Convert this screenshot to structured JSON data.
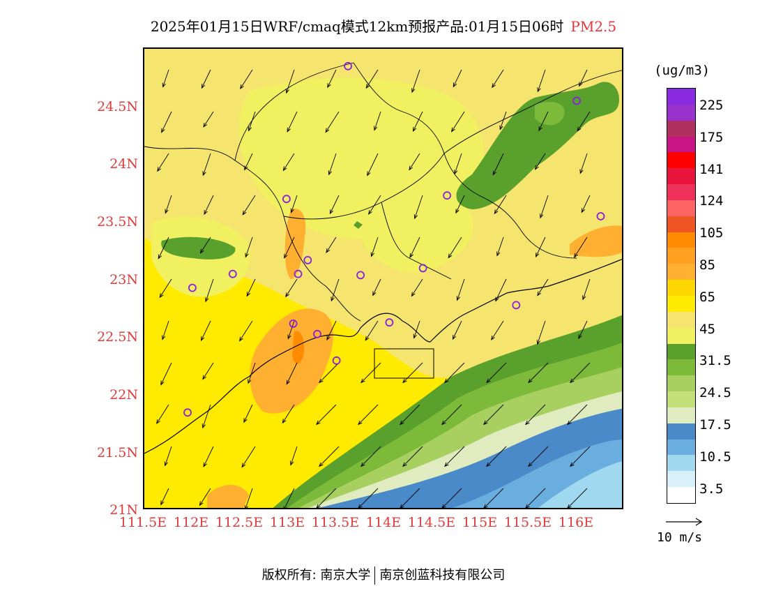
{
  "title": {
    "main": "2025年01月15日WRF/cmaq模式12km预报产品:01月15日06时",
    "pollutant": "PM2.5"
  },
  "axes": {
    "lat_labels": [
      "24.5N",
      "24N",
      "23.5N",
      "23N",
      "22.5N",
      "22N",
      "21.5N",
      "21N"
    ],
    "lon_labels": [
      "111.5E",
      "112E",
      "112.5E",
      "113E",
      "113.5E",
      "114E",
      "114.5E",
      "115E",
      "115.5E",
      "116E"
    ]
  },
  "legend": {
    "unit": "(ug/m3)",
    "labels": [
      "225",
      "175",
      "141",
      "124",
      "105",
      "85",
      "65",
      "45",
      "31.5",
      "24.5",
      "17.5",
      "10.5",
      "3.5"
    ],
    "colors": [
      "#8a2be2",
      "#9932cc",
      "#b03060",
      "#c71585",
      "#ff0000",
      "#e8143c",
      "#f0305a",
      "#ff6464",
      "#ee5522",
      "#ff8c00",
      "#ffa020",
      "#ffb030",
      "#ffd700",
      "#ffea00",
      "#f5e46e",
      "#f0f060",
      "#5aa02c",
      "#7dba3a",
      "#a8d060",
      "#c3e078",
      "#e0ecc0",
      "#4a8ac8",
      "#6aaee0",
      "#a0d8f0",
      "#d8f0fa",
      "#ffffff"
    ]
  },
  "wind_reference": {
    "label": "10 m/s"
  },
  "footer": {
    "left": "版权所有: 南京大学",
    "right": "南京创蓝科技有限公司"
  },
  "map": {
    "extent": {
      "lon_min": 111.5,
      "lon_max": 116.5,
      "lat_min": 21.0,
      "lat_max": 25.0
    },
    "monitoring_sites": [
      [
        113.62,
        24.85
      ],
      [
        116.0,
        24.55
      ],
      [
        112.98,
        23.7
      ],
      [
        114.65,
        23.73
      ],
      [
        116.25,
        23.55
      ],
      [
        113.2,
        23.17
      ],
      [
        113.1,
        23.05
      ],
      [
        112.42,
        23.05
      ],
      [
        113.75,
        23.04
      ],
      [
        114.4,
        23.1
      ],
      [
        112.0,
        22.93
      ],
      [
        113.05,
        22.62
      ],
      [
        113.3,
        22.53
      ],
      [
        114.05,
        22.63
      ],
      [
        115.37,
        22.78
      ],
      [
        113.5,
        22.3
      ],
      [
        111.95,
        21.85
      ]
    ]
  }
}
